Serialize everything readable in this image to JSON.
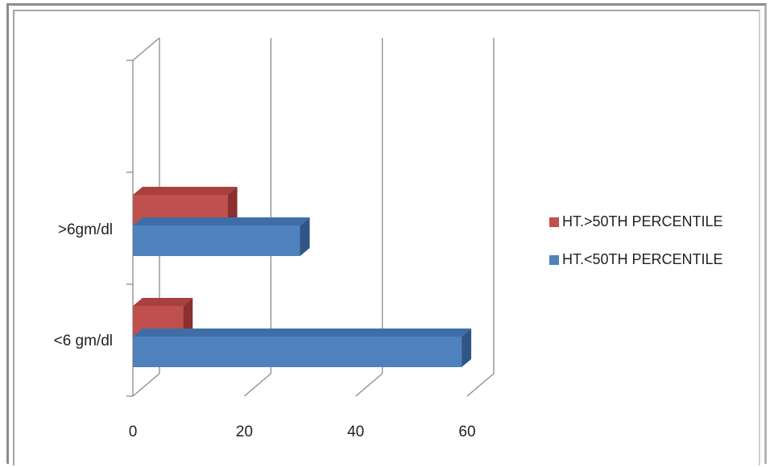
{
  "chart_data": {
    "type": "bar",
    "orientation": "horizontal",
    "three_d": true,
    "categories": [
      "<6 gm/dl",
      ">6gm/dl"
    ],
    "series": [
      {
        "name": "HT.<50TH PERCENTILE",
        "values": [
          59,
          30
        ],
        "color": "#4f81bd",
        "top_color": "#3f6ea6",
        "side_color": "#2f5687"
      },
      {
        "name": "HT.>50TH PERCENTILE",
        "values": [
          9,
          17
        ],
        "color": "#c0504d",
        "top_color": "#a8403d",
        "side_color": "#8a302e"
      }
    ],
    "x_ticks": [
      0,
      20,
      40,
      60
    ],
    "xlim": [
      0,
      60
    ],
    "grid": true,
    "legend_position": "right",
    "legend_order": [
      "HT.>50TH PERCENTILE",
      "HT.<50TH PERCENTILE"
    ],
    "title": "",
    "xlabel": "",
    "ylabel": ""
  }
}
